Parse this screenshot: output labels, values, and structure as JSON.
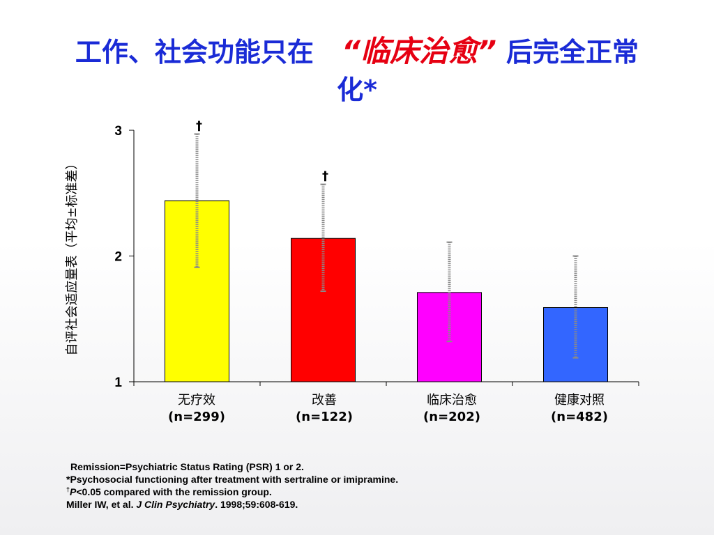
{
  "title": {
    "line1_before": "工作、社会功能只在",
    "line1_highlight": "“临床治愈”",
    "line1_after": "后完全正常",
    "line2": "化*"
  },
  "chart_data": {
    "type": "bar",
    "ylabel": "自评社会适应量表（平均±标准差）",
    "ylim": [
      1,
      3
    ],
    "yticks": [
      1,
      2,
      3
    ],
    "categories": [
      "无疗效",
      "改善",
      "临床治愈",
      "健康对照"
    ],
    "category_n": [
      "(n=299)",
      "(n=122)",
      "(n=202)",
      "(n=482)"
    ],
    "values": [
      2.44,
      2.14,
      1.71,
      1.59
    ],
    "error_upper": [
      2.97,
      2.57,
      2.11,
      2.0
    ],
    "error_lower": [
      1.91,
      1.72,
      1.32,
      1.19
    ],
    "colors": [
      "#ffff00",
      "#ff0000",
      "#ff00ff",
      "#3366ff"
    ],
    "significance_marks": [
      "†",
      "†",
      "",
      ""
    ]
  },
  "footnotes": {
    "line1": "Remission=Psychiatric Status Rating (PSR) 1 or 2.",
    "line2": "*Psychosocial functioning after treatment with sertraline or imipramine.",
    "line3_dagger": "†",
    "line3_p": "P",
    "line3_rest": "<0.05 compared with the remission group.",
    "line4_authors": "Miller IW, et al. ",
    "line4_journal": "J Clin Psychiatry",
    "line4_rest": ". 1998;59:608-619."
  }
}
